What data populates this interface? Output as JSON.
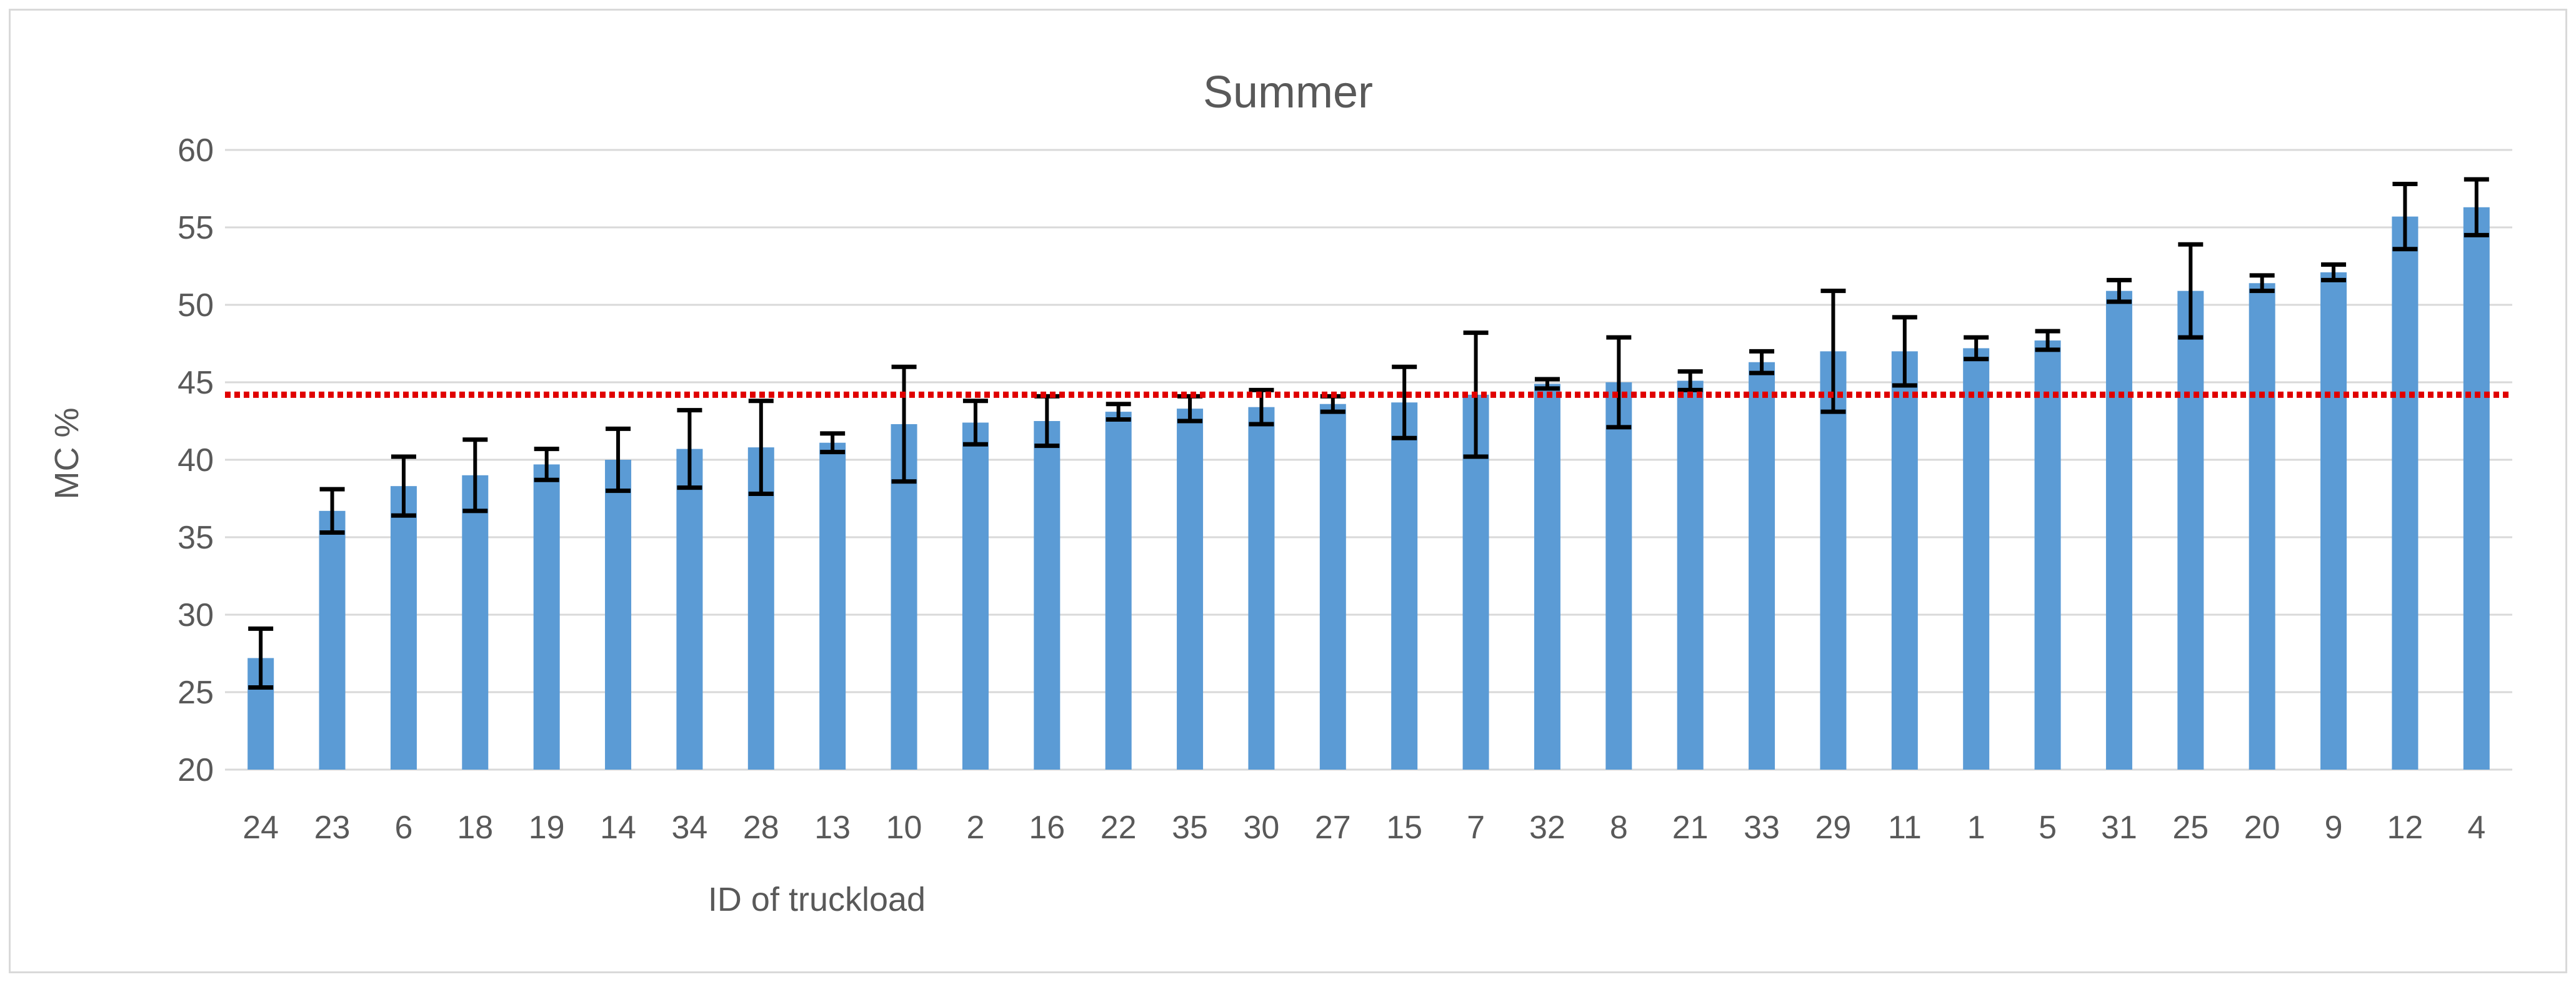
{
  "chart_data": {
    "type": "bar",
    "title": "Summer",
    "xlabel": "ID of truckload",
    "ylabel": "MC %",
    "ylim": [
      20,
      60
    ],
    "yticks": [
      "20",
      "25",
      "30",
      "35",
      "40",
      "45",
      "50",
      "55",
      "60"
    ],
    "grid": true,
    "legend": "none",
    "categories": [
      "24",
      "23",
      "6",
      "18",
      "19",
      "14",
      "34",
      "28",
      "13",
      "10",
      "2",
      "16",
      "22",
      "35",
      "30",
      "27",
      "15",
      "7",
      "32",
      "8",
      "21",
      "33",
      "29",
      "11",
      "1",
      "5",
      "31",
      "25",
      "20",
      "9",
      "12",
      "4"
    ],
    "values": [
      27.2,
      36.7,
      38.3,
      39.0,
      39.7,
      40.0,
      40.7,
      40.8,
      41.1,
      42.3,
      42.4,
      42.5,
      43.1,
      43.3,
      43.4,
      43.6,
      43.7,
      44.2,
      44.9,
      45.0,
      45.1,
      46.3,
      47.0,
      47.0,
      47.2,
      47.7,
      50.9,
      50.9,
      51.4,
      52.1,
      55.7,
      56.3
    ],
    "error": [
      1.9,
      1.4,
      1.9,
      2.3,
      1.0,
      2.0,
      2.5,
      3.0,
      0.6,
      3.7,
      1.4,
      1.6,
      0.5,
      0.8,
      1.1,
      0.5,
      2.3,
      4.0,
      0.3,
      2.9,
      0.6,
      0.7,
      3.9,
      2.2,
      0.7,
      0.6,
      0.7,
      3.0,
      0.5,
      0.5,
      2.1,
      1.8
    ],
    "reference_line": {
      "value": 44.2,
      "style": "dotted"
    },
    "colors": {
      "bar": "#5b9bd5",
      "error_bar": "#000000",
      "reference_line": "#e00000",
      "grid": "#d9d9d9",
      "text": "#595959"
    }
  }
}
